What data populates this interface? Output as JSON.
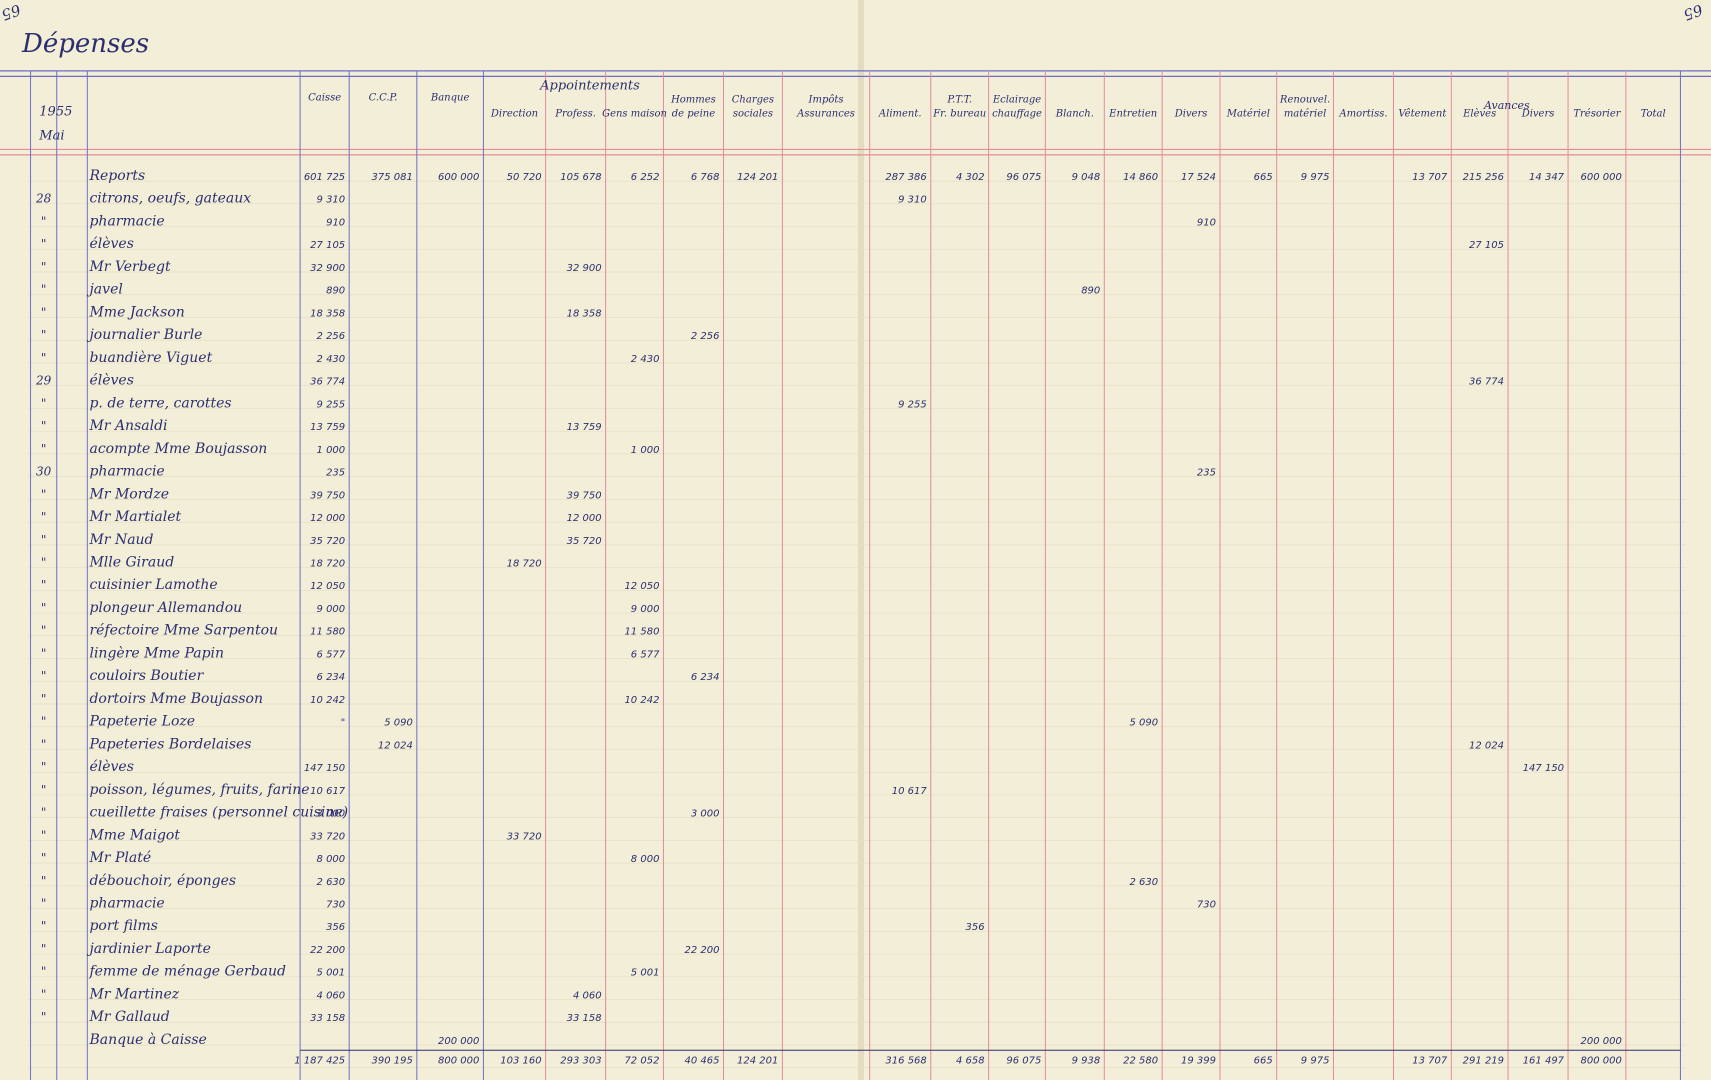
{
  "header": {
    "page_left": "65",
    "page_right": "65",
    "title": "Dépenses",
    "year": "1955",
    "month": "Mai",
    "group_appointements": "Appointements",
    "group_avances": "Avances"
  },
  "columns": [
    {
      "label": "Caisse"
    },
    {
      "label": "C.C.P."
    },
    {
      "label": "Banque"
    },
    {
      "label": "Direction"
    },
    {
      "label": "Profess."
    },
    {
      "label": "Gens maison"
    },
    {
      "top": "Hommes",
      "label": "de peine"
    },
    {
      "top": "Charges",
      "label": "sociales"
    },
    {
      "top": "Impôts",
      "label": "Assurances"
    },
    {
      "label": "Aliment."
    },
    {
      "top": "P.T.T.",
      "label": "Fr. bureau"
    },
    {
      "top": "Eclairage",
      "label": "chauffage"
    },
    {
      "label": "Blanch."
    },
    {
      "label": "Entretien"
    },
    {
      "label": "Divers"
    },
    {
      "label": "Matériel"
    },
    {
      "top": "Renouvel.",
      "label": "matériel"
    },
    {
      "label": "Amortiss."
    },
    {
      "label": "Vêtement"
    },
    {
      "label": "Elèves"
    },
    {
      "label": "Divers"
    },
    {
      "label": "Trésorier"
    },
    {
      "label": "Total"
    }
  ],
  "rows": [
    {
      "label": "Reports",
      "amounts": [
        "601 725",
        "375 081",
        "600 000",
        "50 720",
        "105 678",
        "6 252",
        "6 768",
        "124 201",
        null,
        "287 386",
        "4 302",
        "96 075",
        "9 048",
        "14 860",
        "17 524",
        "665",
        "9 975",
        null,
        "13 707",
        "215 256",
        "14 347",
        "600 000"
      ]
    },
    {
      "day": "28",
      "label": "citrons, oeufs, gateaux",
      "amounts": [
        "9 310",
        null,
        null,
        null,
        null,
        null,
        null,
        null,
        null,
        "9 310"
      ]
    },
    {
      "day": "\"",
      "label": "pharmacie",
      "amounts": [
        "910",
        null,
        null,
        null,
        null,
        null,
        null,
        null,
        null,
        null,
        null,
        null,
        null,
        null,
        "910"
      ]
    },
    {
      "day": "\"",
      "label": "élèves",
      "amounts": [
        "27 105",
        null,
        null,
        null,
        null,
        null,
        null,
        null,
        null,
        null,
        null,
        null,
        null,
        null,
        null,
        null,
        null,
        null,
        null,
        "27 105"
      ]
    },
    {
      "day": "\"",
      "label": "Mr Verbegt",
      "amounts": [
        "32 900",
        null,
        null,
        null,
        "32 900"
      ]
    },
    {
      "day": "\"",
      "label": "javel",
      "amounts": [
        "890",
        null,
        null,
        null,
        null,
        null,
        null,
        null,
        null,
        null,
        null,
        null,
        "890"
      ]
    },
    {
      "day": "\"",
      "label": "Mme Jackson",
      "amounts": [
        "18 358",
        null,
        null,
        null,
        "18 358"
      ]
    },
    {
      "day": "\"",
      "label": "journalier Burle",
      "amounts": [
        "2 256",
        null,
        null,
        null,
        null,
        null,
        "2 256"
      ]
    },
    {
      "day": "\"",
      "label": "buandière Viguet",
      "amounts": [
        "2 430",
        null,
        null,
        null,
        null,
        "2 430"
      ]
    },
    {
      "day": "29",
      "label": "élèves",
      "amounts": [
        "36 774",
        null,
        null,
        null,
        null,
        null,
        null,
        null,
        null,
        null,
        null,
        null,
        null,
        null,
        null,
        null,
        null,
        null,
        null,
        "36 774"
      ]
    },
    {
      "day": "\"",
      "label": "p. de terre, carottes",
      "amounts": [
        "9 255",
        null,
        null,
        null,
        null,
        null,
        null,
        null,
        null,
        "9 255"
      ]
    },
    {
      "day": "\"",
      "label": "Mr Ansaldi",
      "amounts": [
        "13 759",
        null,
        null,
        null,
        "13 759"
      ]
    },
    {
      "day": "\"",
      "label": "acompte Mme Boujasson",
      "amounts": [
        "1 000",
        null,
        null,
        null,
        null,
        "1 000"
      ]
    },
    {
      "day": "30",
      "label": "pharmacie",
      "amounts": [
        "235",
        null,
        null,
        null,
        null,
        null,
        null,
        null,
        null,
        null,
        null,
        null,
        null,
        null,
        "235"
      ]
    },
    {
      "day": "\"",
      "label": "Mr Mordze",
      "amounts": [
        "39 750",
        null,
        null,
        null,
        "39 750"
      ]
    },
    {
      "day": "\"",
      "label": "Mr Martialet",
      "amounts": [
        "12 000",
        null,
        null,
        null,
        "12 000"
      ]
    },
    {
      "day": "\"",
      "label": "Mr Naud",
      "amounts": [
        "35 720",
        null,
        null,
        null,
        "35 720"
      ]
    },
    {
      "day": "\"",
      "label": "Mlle Giraud",
      "amounts": [
        "18 720",
        null,
        null,
        "18 720"
      ]
    },
    {
      "day": "\"",
      "label": "cuisinier Lamothe",
      "amounts": [
        "12 050",
        null,
        null,
        null,
        null,
        "12 050"
      ]
    },
    {
      "day": "\"",
      "label": "plongeur Allemandou",
      "amounts": [
        "9 000",
        null,
        null,
        null,
        null,
        "9 000"
      ]
    },
    {
      "day": "\"",
      "label": "réfectoire Mme Sarpentou",
      "amounts": [
        "11 580",
        null,
        null,
        null,
        null,
        "11 580"
      ]
    },
    {
      "day": "\"",
      "label": "lingère Mme Papin",
      "amounts": [
        "6 577",
        null,
        null,
        null,
        null,
        "6 577"
      ]
    },
    {
      "day": "\"",
      "label": "couloirs Boutier",
      "amounts": [
        "6 234",
        null,
        null,
        null,
        null,
        null,
        "6 234"
      ]
    },
    {
      "day": "\"",
      "label": "dortoirs Mme Boujasson",
      "amounts": [
        "10 242",
        null,
        null,
        null,
        null,
        "10 242"
      ]
    },
    {
      "day": "\"",
      "label": "Papeterie Loze",
      "amounts": [
        "\"",
        "5 090",
        null,
        null,
        null,
        null,
        null,
        null,
        null,
        null,
        null,
        null,
        null,
        "5 090"
      ]
    },
    {
      "day": "\"",
      "label": "Papeteries Bordelaises",
      "amounts": [
        null,
        "12 024",
        null,
        null,
        null,
        null,
        null,
        null,
        null,
        null,
        null,
        null,
        null,
        null,
        null,
        null,
        null,
        null,
        null,
        "12 024"
      ]
    },
    {
      "day": "\"",
      "label": "élèves",
      "amounts": [
        "147 150",
        null,
        null,
        null,
        null,
        null,
        null,
        null,
        null,
        null,
        null,
        null,
        null,
        null,
        null,
        null,
        null,
        null,
        null,
        null,
        "147 150"
      ]
    },
    {
      "day": "\"",
      "label": "poisson, légumes, fruits, farine",
      "amounts": [
        "10 617",
        null,
        null,
        null,
        null,
        null,
        null,
        null,
        null,
        "10 617"
      ]
    },
    {
      "day": "\"",
      "label": "cueillette fraises (personnel cuisine)",
      "amounts": [
        "3 000",
        null,
        null,
        null,
        null,
        null,
        "3 000"
      ]
    },
    {
      "day": "\"",
      "label": "Mme Maigot",
      "amounts": [
        "33 720",
        null,
        null,
        "33 720"
      ]
    },
    {
      "day": "\"",
      "label": "Mr Platé",
      "amounts": [
        "8 000",
        null,
        null,
        null,
        null,
        "8 000"
      ]
    },
    {
      "day": "\"",
      "label": "débouchoir, éponges",
      "amounts": [
        "2 630",
        null,
        null,
        null,
        null,
        null,
        null,
        null,
        null,
        null,
        null,
        null,
        null,
        "2 630"
      ]
    },
    {
      "day": "\"",
      "label": "pharmacie",
      "amounts": [
        "730",
        null,
        null,
        null,
        null,
        null,
        null,
        null,
        null,
        null,
        null,
        null,
        null,
        null,
        "730"
      ]
    },
    {
      "day": "\"",
      "label": "port films",
      "amounts": [
        "356",
        null,
        null,
        null,
        null,
        null,
        null,
        null,
        null,
        null,
        "356"
      ]
    },
    {
      "day": "\"",
      "label": "jardinier Laporte",
      "amounts": [
        "22 200",
        null,
        null,
        null,
        null,
        null,
        "22 200"
      ]
    },
    {
      "day": "\"",
      "label": "femme de ménage Gerbaud",
      "amounts": [
        "5 001",
        null,
        null,
        null,
        null,
        "5 001"
      ]
    },
    {
      "day": "\"",
      "label": "Mr Martinez",
      "amounts": [
        "4 060",
        null,
        null,
        null,
        "4 060"
      ]
    },
    {
      "day": "\"",
      "label": "Mr Gallaud",
      "amounts": [
        "33 158",
        null,
        null,
        null,
        "33 158"
      ]
    },
    {
      "label": "Banque à Caisse",
      "amounts": [
        null,
        null,
        "200 000",
        null,
        null,
        null,
        null,
        null,
        null,
        null,
        null,
        null,
        null,
        null,
        null,
        null,
        null,
        null,
        null,
        null,
        null,
        "200 000"
      ]
    }
  ],
  "totals": [
    "1 187 425",
    "390 195",
    "800 000",
    "103 160",
    "293 303",
    "72 052",
    "40 465",
    "124 201",
    null,
    "316 568",
    "4 658",
    "96 075",
    "9 938",
    "22 580",
    "19 399",
    "665",
    "9 975",
    null,
    "13 707",
    "291 219",
    "161 497",
    "800 000"
  ]
}
